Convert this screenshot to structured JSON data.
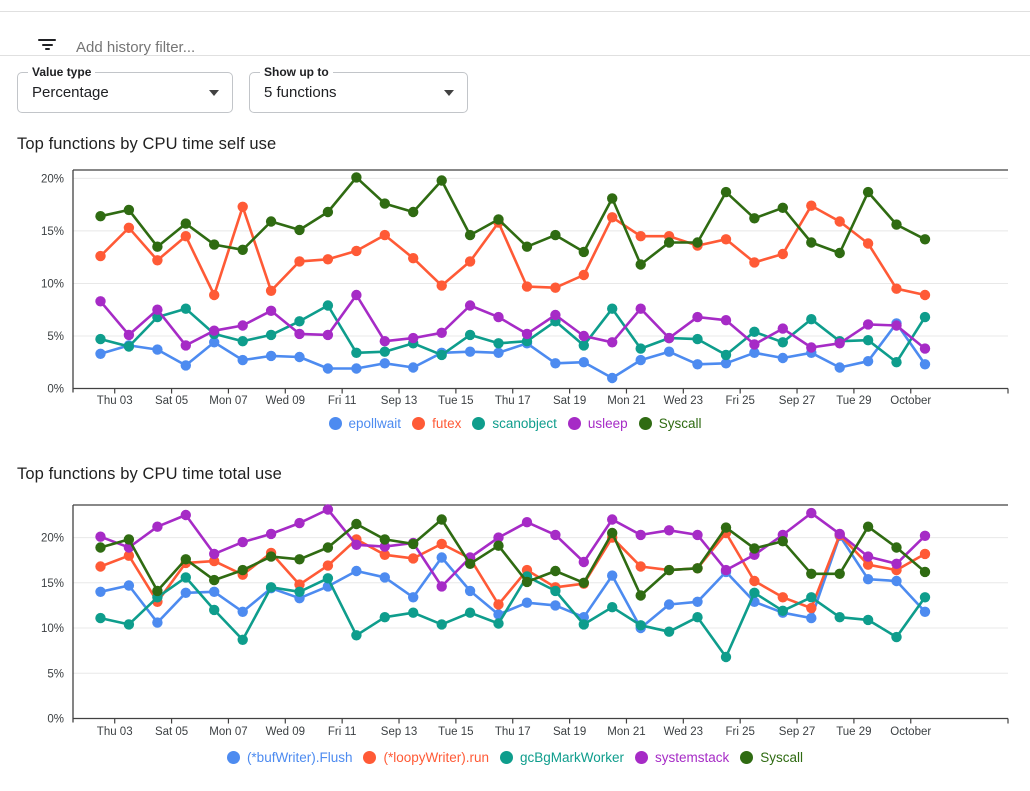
{
  "filter_bar": {
    "icon": "filter-list",
    "placeholder": "Add history filter..."
  },
  "controls": {
    "value_type": {
      "label": "Value type",
      "value": "Percentage"
    },
    "show_up_to": {
      "label": "Show up to",
      "value": "5 functions"
    }
  },
  "palette": {
    "blue": "#4d8bf0",
    "orange": "#ff5a36",
    "teal": "#0e9d8c",
    "purple": "#a62bc6",
    "green": "#2f6b12",
    "grid": "#e8e8e8",
    "axis": "#424242",
    "tick_label": "#3c4043"
  },
  "chart_data": [
    {
      "type": "line",
      "title": "Top functions by CPU time self use",
      "y_ticks": [
        "0%",
        "5%",
        "10%",
        "15%",
        "20%"
      ],
      "y_tick_values": [
        0,
        5,
        10,
        15,
        20
      ],
      "ylim": [
        0,
        20.8
      ],
      "grid": true,
      "legend_position": "bottom",
      "x_tick_labels": [
        "Thu 03",
        "Sat 05",
        "Mon 07",
        "Wed 09",
        "Fri 11",
        "Sep 13",
        "Tue 15",
        "Thu 17",
        "Sat 19",
        "Mon 21",
        "Wed 23",
        "Fri 25",
        "Sep 27",
        "Tue 29",
        "October"
      ],
      "series": [
        {
          "name": "epollwait",
          "color": "#4d8bf0",
          "values": [
            3.3,
            4.1,
            3.7,
            2.2,
            4.4,
            2.7,
            3.1,
            3.0,
            1.9,
            1.9,
            2.4,
            2.0,
            3.4,
            3.5,
            3.4,
            4.3,
            2.4,
            2.5,
            1.0,
            2.7,
            3.5,
            2.3,
            2.4,
            3.4,
            2.9,
            3.4,
            2.0,
            2.6,
            6.2,
            2.3
          ]
        },
        {
          "name": "futex",
          "color": "#ff5a36",
          "values": [
            12.6,
            15.3,
            12.2,
            14.5,
            8.9,
            17.3,
            9.3,
            12.1,
            12.3,
            13.1,
            14.6,
            12.4,
            9.8,
            12.1,
            15.8,
            9.7,
            9.6,
            10.8,
            16.3,
            14.5,
            14.5,
            13.6,
            14.2,
            12.0,
            12.8,
            17.4,
            15.9,
            13.8,
            9.5,
            8.9
          ]
        },
        {
          "name": "scanobject",
          "color": "#0e9d8c",
          "values": [
            4.7,
            4.0,
            6.8,
            7.6,
            5.2,
            4.5,
            5.1,
            6.4,
            7.9,
            3.4,
            3.5,
            4.3,
            3.2,
            5.1,
            4.3,
            4.5,
            6.4,
            4.1,
            7.6,
            3.8,
            4.8,
            4.7,
            3.2,
            5.4,
            4.4,
            6.6,
            4.5,
            4.6,
            2.5,
            6.8
          ]
        },
        {
          "name": "usleep",
          "color": "#a62bc6",
          "values": [
            8.3,
            5.1,
            7.5,
            4.1,
            5.5,
            6.0,
            7.4,
            5.2,
            5.1,
            8.9,
            4.5,
            4.8,
            5.3,
            7.9,
            6.8,
            5.2,
            7.0,
            5.0,
            4.4,
            7.6,
            4.8,
            6.8,
            6.5,
            4.2,
            5.7,
            3.9,
            4.3,
            6.1,
            6.0,
            3.8
          ]
        },
        {
          "name": "Syscall",
          "color": "#2f6b12",
          "values": [
            16.4,
            17.0,
            13.5,
            15.7,
            13.7,
            13.2,
            15.9,
            15.1,
            16.8,
            20.1,
            17.6,
            16.8,
            19.8,
            14.6,
            16.1,
            13.5,
            14.6,
            13.0,
            18.1,
            11.8,
            13.9,
            13.9,
            18.7,
            16.2,
            17.2,
            13.9,
            12.9,
            18.7,
            15.6,
            14.2
          ]
        }
      ]
    },
    {
      "type": "line",
      "title": "Top functions by CPU time total use",
      "y_ticks": [
        "0%",
        "5%",
        "10%",
        "15%",
        "20%"
      ],
      "y_tick_values": [
        0,
        5,
        10,
        15,
        20
      ],
      "ylim": [
        0,
        23.6
      ],
      "grid": true,
      "legend_position": "bottom",
      "x_tick_labels": [
        "Thu 03",
        "Sat 05",
        "Mon 07",
        "Wed 09",
        "Fri 11",
        "Sep 13",
        "Tue 15",
        "Thu 17",
        "Sat 19",
        "Mon 21",
        "Wed 23",
        "Fri 25",
        "Sep 27",
        "Tue 29",
        "October"
      ],
      "series": [
        {
          "name": "(*bufWriter).Flush",
          "color": "#4d8bf0",
          "values": [
            14.0,
            14.7,
            10.6,
            13.9,
            14.0,
            11.8,
            14.4,
            13.3,
            14.6,
            16.3,
            15.6,
            13.4,
            17.8,
            14.1,
            11.5,
            12.8,
            12.5,
            11.2,
            15.8,
            10.0,
            12.6,
            12.9,
            16.2,
            12.9,
            11.7,
            11.1,
            20.2,
            15.4,
            15.2,
            11.8
          ]
        },
        {
          "name": "(*loopyWriter).run",
          "color": "#ff5a36",
          "values": [
            16.8,
            18.0,
            12.9,
            17.2,
            17.4,
            15.9,
            18.3,
            14.8,
            16.9,
            19.8,
            18.1,
            17.7,
            19.3,
            17.7,
            12.6,
            16.4,
            14.5,
            14.9,
            20.0,
            16.8,
            16.4,
            16.6,
            20.5,
            15.2,
            13.4,
            12.2,
            20.3,
            17.0,
            16.4,
            18.2
          ]
        },
        {
          "name": "gcBgMarkWorker",
          "color": "#0e9d8c",
          "values": [
            11.1,
            10.4,
            13.4,
            15.6,
            12.0,
            8.7,
            14.5,
            14.0,
            15.5,
            9.2,
            11.2,
            11.7,
            10.4,
            11.7,
            10.5,
            15.7,
            14.1,
            10.4,
            12.3,
            10.3,
            9.6,
            11.2,
            6.8,
            13.9,
            11.9,
            13.4,
            11.2,
            10.9,
            9.0,
            13.4
          ]
        },
        {
          "name": "systemstack",
          "color": "#a62bc6",
          "values": [
            20.1,
            18.9,
            21.2,
            22.5,
            18.2,
            19.5,
            20.4,
            21.6,
            23.1,
            19.2,
            19.0,
            19.4,
            14.6,
            17.8,
            20.0,
            21.7,
            20.3,
            17.3,
            22.0,
            20.3,
            20.8,
            20.3,
            16.4,
            18.1,
            20.3,
            22.7,
            20.4,
            17.9,
            17.1,
            20.2
          ]
        },
        {
          "name": "Syscall",
          "color": "#2f6b12",
          "values": [
            18.9,
            19.8,
            14.1,
            17.6,
            15.3,
            16.4,
            17.9,
            17.6,
            18.9,
            21.5,
            19.8,
            19.3,
            22.0,
            17.1,
            19.1,
            15.1,
            16.3,
            15.0,
            20.5,
            13.6,
            16.4,
            16.6,
            21.1,
            18.8,
            19.6,
            16.0,
            16.0,
            21.2,
            18.9,
            16.2
          ]
        }
      ]
    }
  ]
}
